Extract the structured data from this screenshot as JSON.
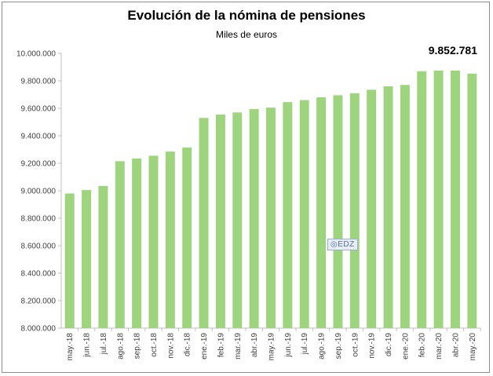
{
  "chart_data": {
    "type": "bar",
    "title": "Evolución de la nómina de pensiones",
    "subtitle": "Miles de euros",
    "annotation": "9.852.781",
    "watermark": "EDZ",
    "categories": [
      "may.-18",
      "jun.-18",
      "jul.-18",
      "ago.-18",
      "sep.-18",
      "oct.-18",
      "nov.-18",
      "dic.-18",
      "ene.-19",
      "feb.-19",
      "mar.-19",
      "abr.-19",
      "may.-19",
      "jun.-19",
      "jul.-19",
      "ago.-19",
      "sep.-19",
      "oct.-19",
      "nov.-19",
      "dic.-19",
      "ene.-20",
      "feb.-20",
      "mar.-20",
      "abr.-20",
      "may.-20"
    ],
    "values": [
      8980000,
      9005000,
      9035000,
      9215000,
      9235000,
      9255000,
      9285000,
      9315000,
      9530000,
      9555000,
      9570000,
      9595000,
      9605000,
      9645000,
      9660000,
      9680000,
      9695000,
      9710000,
      9735000,
      9760000,
      9770000,
      9870000,
      9875000,
      9875000,
      9852781
    ],
    "ylim": [
      8000000,
      10000000
    ],
    "yticks": [
      "8.000.000",
      "8.200.000",
      "8.400.000",
      "8.600.000",
      "8.800.000",
      "9.000.000",
      "9.200.000",
      "9.400.000",
      "9.600.000",
      "9.800.000",
      "10.000.000"
    ],
    "ytick_values": [
      8000000,
      8200000,
      8400000,
      8600000,
      8800000,
      9000000,
      9200000,
      9400000,
      9600000,
      9800000,
      10000000
    ],
    "bar_color": "#9ed47e",
    "grid": false,
    "xlabel": "",
    "ylabel": ""
  }
}
